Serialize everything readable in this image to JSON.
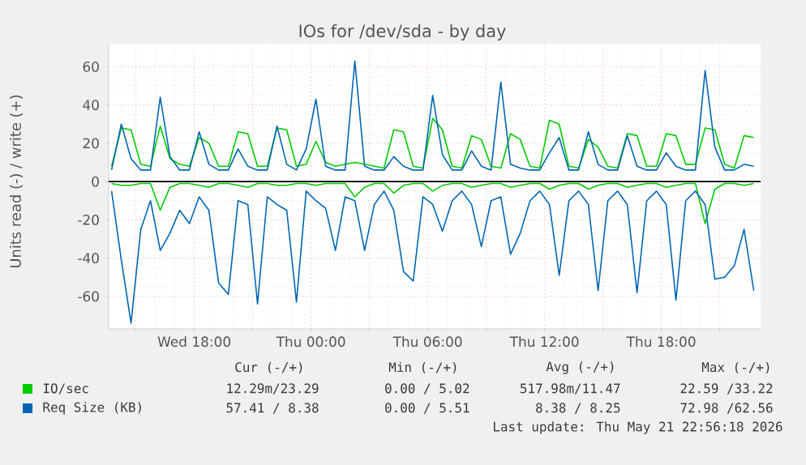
{
  "chart_data": {
    "type": "line",
    "title": "IOs for /dev/sda - by day",
    "ylabel": "Units read (-) / write (+)",
    "x": [
      "2026-05-20T13:45",
      "2026-05-20T14:15",
      "2026-05-20T14:45",
      "2026-05-20T15:15",
      "2026-05-20T15:45",
      "2026-05-20T16:15",
      "2026-05-20T16:45",
      "2026-05-20T17:15",
      "2026-05-20T17:45",
      "2026-05-20T18:15",
      "2026-05-20T18:45",
      "2026-05-20T19:15",
      "2026-05-20T19:45",
      "2026-05-20T20:15",
      "2026-05-20T20:45",
      "2026-05-20T21:15",
      "2026-05-20T21:45",
      "2026-05-20T22:15",
      "2026-05-20T22:45",
      "2026-05-20T23:15",
      "2026-05-20T23:45",
      "2026-05-21T00:15",
      "2026-05-21T00:45",
      "2026-05-21T01:15",
      "2026-05-21T01:45",
      "2026-05-21T02:15",
      "2026-05-21T02:45",
      "2026-05-21T03:15",
      "2026-05-21T03:45",
      "2026-05-21T04:15",
      "2026-05-21T04:45",
      "2026-05-21T05:15",
      "2026-05-21T05:45",
      "2026-05-21T06:15",
      "2026-05-21T06:45",
      "2026-05-21T07:15",
      "2026-05-21T07:45",
      "2026-05-21T08:15",
      "2026-05-21T08:45",
      "2026-05-21T09:15",
      "2026-05-21T09:45",
      "2026-05-21T10:15",
      "2026-05-21T10:45",
      "2026-05-21T11:15",
      "2026-05-21T11:45",
      "2026-05-21T12:15",
      "2026-05-21T12:45",
      "2026-05-21T13:15",
      "2026-05-21T13:45",
      "2026-05-21T14:15",
      "2026-05-21T14:45",
      "2026-05-21T15:15",
      "2026-05-21T15:45",
      "2026-05-21T16:15",
      "2026-05-21T16:45",
      "2026-05-21T17:15",
      "2026-05-21T17:45",
      "2026-05-21T18:15",
      "2026-05-21T18:45",
      "2026-05-21T19:15",
      "2026-05-21T19:45",
      "2026-05-21T20:15",
      "2026-05-21T20:45",
      "2026-05-21T21:15",
      "2026-05-21T21:45",
      "2026-05-21T22:15",
      "2026-05-21T22:45"
    ],
    "series": [
      {
        "name": "IO/sec",
        "color": "#00cc00",
        "values": [
          8,
          28,
          27,
          9,
          8,
          29,
          12,
          9,
          8,
          23,
          20,
          8,
          8,
          26,
          25,
          8,
          8,
          28,
          27,
          8,
          9,
          21,
          10,
          8,
          9,
          10,
          9,
          8,
          7,
          27,
          26,
          8,
          7,
          33,
          27,
          8,
          7,
          24,
          22,
          8,
          7,
          25,
          22,
          8,
          7,
          32,
          30,
          8,
          7,
          22,
          18,
          8,
          7,
          25,
          24,
          8,
          8,
          25,
          24,
          9,
          9,
          28,
          27,
          9,
          7,
          24,
          23
        ]
      },
      {
        "color": "#00cc00",
        "values": [
          -1,
          -2,
          -2,
          -1,
          -1,
          -15,
          -3,
          -1,
          -1,
          -2,
          -3,
          -1,
          -1,
          -2,
          -3,
          -1,
          -1,
          -2,
          -2,
          -1,
          -1,
          -2,
          -1,
          -1,
          -1,
          -8,
          -3,
          -1,
          -1,
          -6,
          -2,
          -1,
          -1,
          -5,
          -2,
          -1,
          -1,
          -3,
          -2,
          -1,
          -1,
          -3,
          -2,
          -1,
          -1,
          -4,
          -2,
          -1,
          -1,
          -4,
          -2,
          -1,
          -1,
          -3,
          -2,
          -1,
          -1,
          -3,
          -2,
          -1,
          -1,
          -22,
          -4,
          -1,
          -1,
          -2,
          -1
        ]
      },
      {
        "name": "Req Size (KB)",
        "color": "#0066b3",
        "values": [
          6,
          30,
          12,
          6,
          6,
          44,
          13,
          6,
          6,
          26,
          9,
          6,
          6,
          17,
          8,
          6,
          6,
          29,
          9,
          6,
          17,
          43,
          8,
          6,
          6,
          63,
          8,
          6,
          6,
          13,
          8,
          6,
          6,
          45,
          14,
          6,
          6,
          16,
          8,
          6,
          52,
          9,
          7,
          6,
          6,
          15,
          23,
          6,
          6,
          26,
          9,
          6,
          6,
          24,
          8,
          6,
          6,
          15,
          8,
          6,
          6,
          58,
          18,
          6,
          6,
          9,
          8
        ]
      },
      {
        "color": "#0066b3",
        "values": [
          -5,
          -41,
          -74,
          -25,
          -10,
          -36,
          -27,
          -15,
          -22,
          -8,
          -15,
          -53,
          -59,
          -10,
          -12,
          -64,
          -8,
          -12,
          -15,
          -63,
          -5,
          -10,
          -14,
          -36,
          -8,
          -10,
          -36,
          -12,
          -5,
          -15,
          -47,
          -52,
          -8,
          -12,
          -26,
          -10,
          -5,
          -12,
          -34,
          -10,
          -8,
          -38,
          -27,
          -10,
          -5,
          -12,
          -49,
          -10,
          -5,
          -12,
          -57,
          -10,
          -5,
          -12,
          -58,
          -10,
          -5,
          -12,
          -62,
          -10,
          -5,
          -12,
          -51,
          -50,
          -44,
          -25,
          -57
        ]
      }
    ],
    "xlim": [
      "2026-05-20T13:36",
      "2026-05-21T23:06"
    ],
    "xticks": [
      {
        "value": "2026-05-20T15:00",
        "label": null
      },
      {
        "value": "2026-05-20T18:00",
        "label": "Wed 18:00"
      },
      {
        "value": "2026-05-20T21:00",
        "label": null
      },
      {
        "value": "2026-05-21T00:00",
        "label": "Thu 00:00"
      },
      {
        "value": "2026-05-21T03:00",
        "label": null
      },
      {
        "value": "2026-05-21T06:00",
        "label": "Thu 06:00"
      },
      {
        "value": "2026-05-21T09:00",
        "label": null
      },
      {
        "value": "2026-05-21T12:00",
        "label": "Thu 12:00"
      },
      {
        "value": "2026-05-21T15:00",
        "label": null
      },
      {
        "value": "2026-05-21T18:00",
        "label": "Thu 18:00"
      },
      {
        "value": "2026-05-21T21:00",
        "label": null
      }
    ],
    "ylim": [
      -77,
      72
    ],
    "yticks": [
      -60,
      -40,
      -20,
      0,
      20,
      40,
      60
    ],
    "ref_lines": [
      {
        "axis": "y",
        "value": 0,
        "color": "#000000"
      }
    ],
    "grid": true,
    "legend": "bottom",
    "annotations": [
      "Cur (-/+)",
      "Min (-/+)",
      "Avg (-/+)",
      "Max (-/+)",
      "12.29m/23.29",
      "0.00 / 5.02",
      "517.98m/11.47",
      "22.59 /33.22",
      "57.41 / 8.38",
      "0.00 / 5.51",
      "8.38 / 8.25",
      "72.98 /62.56",
      "Last update: Thu May 21 22:56:18 2026"
    ]
  }
}
